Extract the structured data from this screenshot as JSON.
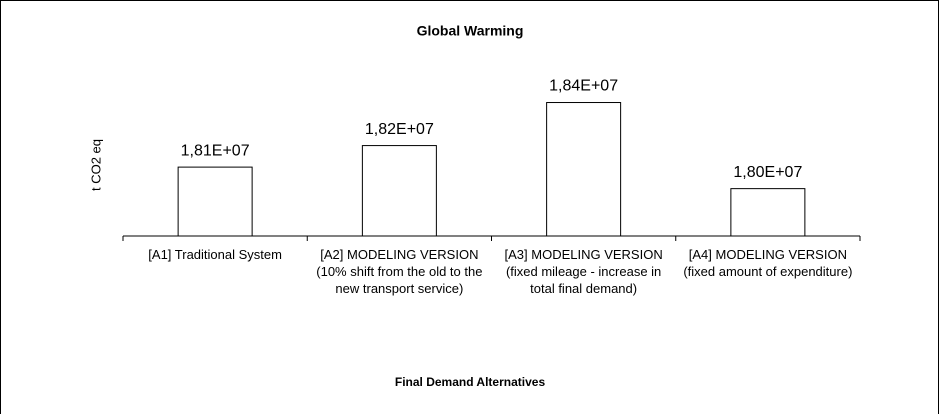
{
  "chart_data": {
    "type": "bar",
    "title": "Global Warming",
    "y_label": "t CO2 eq",
    "x_label": "Final Demand Alternatives",
    "categories": [
      "[A1] Traditional System",
      "[A2] MODELING VERSION (10% shift from the old to the new transport service)",
      "[A3] MODELING VERSION (fixed mileage - increase in total final demand)",
      "[A4] MODELING VERSION (fixed amount of expenditure)"
    ],
    "values": [
      18100000,
      18200000,
      18400000,
      18000000
    ],
    "value_labels": [
      "1,81E+07",
      "1,82E+07",
      "1,84E+07",
      "1,80E+07"
    ],
    "color": "#ffffff",
    "ylim": [
      17780000,
      18500000
    ]
  }
}
